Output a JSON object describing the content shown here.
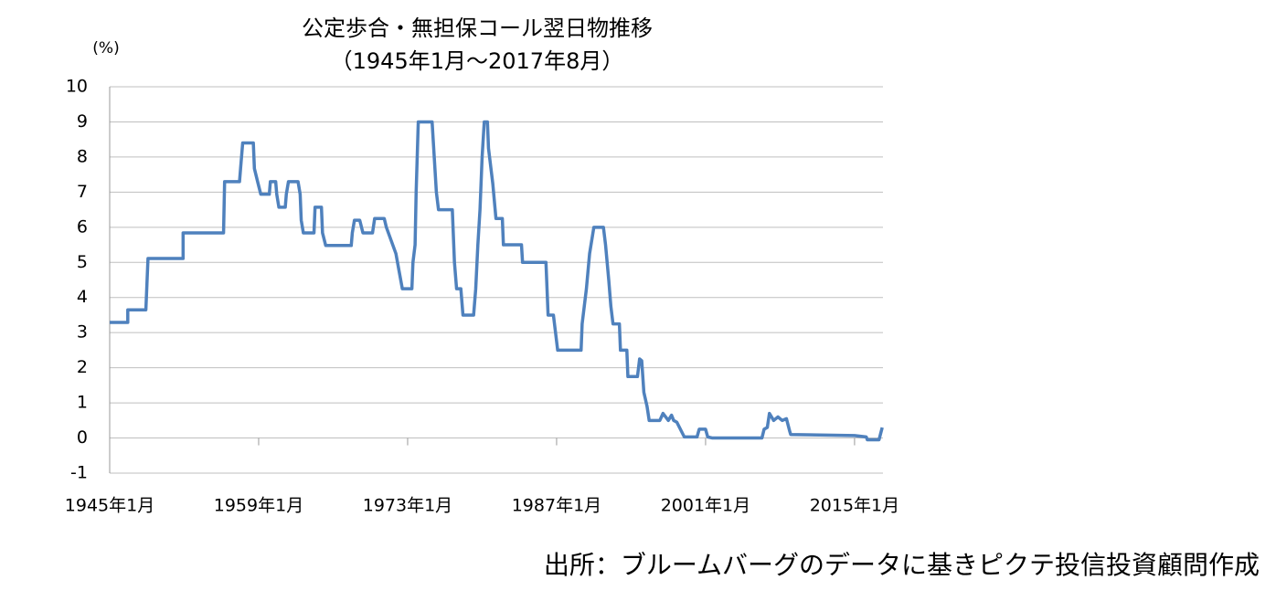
{
  "chart_data": {
    "type": "line",
    "title": "公定歩合・無担保コール翌日物推移",
    "subtitle": "（1945年1月～2017年8月）",
    "y_label": "(%)",
    "source": "出所：ブルームバーグのデータに基きピクテ投信投資顧問作成",
    "color": "#4f81bd",
    "grid": true,
    "xlim": [
      1945,
      2017.67
    ],
    "xticks": [
      {
        "value": 1945,
        "label": "1945年1月"
      },
      {
        "value": 1959,
        "label": "1959年1月"
      },
      {
        "value": 1973,
        "label": "1973年1月"
      },
      {
        "value": 1987,
        "label": "1987年1月"
      },
      {
        "value": 2001,
        "label": "2001年1月"
      },
      {
        "value": 2015,
        "label": "2015年1月"
      }
    ],
    "ylim": [
      -1,
      10
    ],
    "yticks": [
      -1,
      0,
      1,
      2,
      3,
      4,
      5,
      6,
      7,
      8,
      9,
      10
    ],
    "x": [
      1945,
      1946.7,
      1946.7,
      1948.4,
      1948.5,
      1948.6,
      1951.9,
      1951.9,
      1955.7,
      1955.8,
      1957.2,
      1957.3,
      1957.5,
      1958.5,
      1958.6,
      1958.9,
      1959.2,
      1960.0,
      1960.1,
      1960.6,
      1960.7,
      1960.9,
      1961.5,
      1961.6,
      1961.8,
      1962.7,
      1962.9,
      1963.0,
      1963.2,
      1964.2,
      1964.3,
      1964.9,
      1965.0,
      1965.3,
      1967.7,
      1967.8,
      1968.0,
      1968.5,
      1968.8,
      1969.7,
      1969.9,
      1970.8,
      1971.0,
      1971.3,
      1971.6,
      1971.9,
      1972.2,
      1972.5,
      1973.4,
      1973.5,
      1973.7,
      1973.8,
      1974.0,
      1975.3,
      1975.5,
      1975.7,
      1975.9,
      1977.2,
      1977.4,
      1977.6,
      1978.0,
      1978.2,
      1979.2,
      1979.4,
      1979.6,
      1979.8,
      1980.0,
      1980.2,
      1980.5,
      1980.6,
      1981.0,
      1981.3,
      1981.9,
      1982.0,
      1983.7,
      1983.8,
      1986.0,
      1986.2,
      1986.7,
      1986.9,
      1987.1,
      1989.3,
      1989.4,
      1989.8,
      1990.1,
      1990.5,
      1991.4,
      1991.6,
      1991.9,
      1992.1,
      1992.3,
      1992.9,
      1993.0,
      1993.6,
      1993.7,
      1994.6,
      1994.8,
      1995.0,
      1995.2,
      1995.5,
      1995.7,
      1996.7,
      1997.0,
      1997.5,
      1997.8,
      1998.0,
      1998.3,
      1999.0,
      2000.2,
      2000.4,
      2001.0,
      2001.2,
      2001.6,
      2006.3,
      2006.5,
      2006.8,
      2007.0,
      2007.4,
      2007.8,
      2008.2,
      2008.6,
      2008.9,
      2009.0,
      2015.0,
      2016.1,
      2016.2,
      2017.3,
      2017.6
    ],
    "values": [
      3.29,
      3.29,
      3.65,
      3.65,
      4.38,
      5.11,
      5.11,
      5.84,
      5.84,
      7.3,
      7.3,
      7.67,
      8.4,
      8.4,
      7.67,
      7.3,
      6.94,
      6.94,
      7.3,
      7.3,
      6.94,
      6.57,
      6.57,
      6.94,
      7.3,
      7.3,
      6.94,
      6.2,
      5.84,
      5.84,
      6.57,
      6.57,
      5.84,
      5.48,
      5.48,
      5.84,
      6.2,
      6.2,
      5.84,
      5.84,
      6.25,
      6.25,
      6.0,
      5.75,
      5.5,
      5.25,
      4.75,
      4.25,
      4.25,
      5.0,
      5.5,
      7.0,
      9.0,
      9.0,
      8.0,
      7.0,
      6.5,
      6.5,
      5.0,
      4.25,
      4.25,
      3.5,
      3.5,
      4.25,
      5.5,
      6.5,
      8.0,
      9.0,
      9.0,
      8.25,
      7.25,
      6.25,
      6.25,
      5.5,
      5.5,
      5.0,
      5.0,
      3.5,
      3.5,
      3.0,
      2.5,
      2.5,
      3.25,
      4.25,
      5.25,
      6.0,
      6.0,
      5.5,
      4.5,
      3.75,
      3.25,
      3.25,
      2.5,
      2.5,
      1.75,
      1.75,
      2.25,
      2.2,
      1.3,
      0.9,
      0.5,
      0.5,
      0.7,
      0.5,
      0.65,
      0.5,
      0.45,
      0.03,
      0.03,
      0.25,
      0.25,
      0.03,
      0.002,
      0.002,
      0.25,
      0.3,
      0.7,
      0.5,
      0.6,
      0.5,
      0.55,
      0.2,
      0.1,
      0.07,
      0.03,
      -0.05,
      -0.05,
      0.3
    ]
  }
}
